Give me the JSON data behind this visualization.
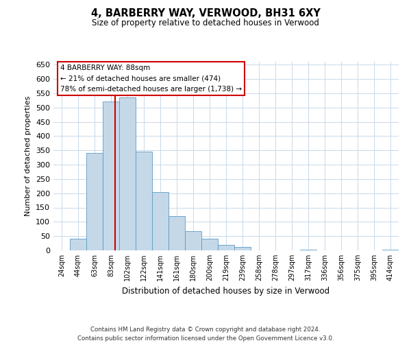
{
  "title": "4, BARBERRY WAY, VERWOOD, BH31 6XY",
  "subtitle": "Size of property relative to detached houses in Verwood",
  "xlabel": "Distribution of detached houses by size in Verwood",
  "ylabel": "Number of detached properties",
  "footer_line1": "Contains HM Land Registry data © Crown copyright and database right 2024.",
  "footer_line2": "Contains public sector information licensed under the Open Government Licence v3.0.",
  "annotation_line1": "4 BARBERRY WAY: 88sqm",
  "annotation_line2": "← 21% of detached houses are smaller (474)",
  "annotation_line3": "78% of semi-detached houses are larger (1,738) →",
  "bin_labels": [
    "24sqm",
    "44sqm",
    "63sqm",
    "83sqm",
    "102sqm",
    "122sqm",
    "141sqm",
    "161sqm",
    "180sqm",
    "200sqm",
    "219sqm",
    "239sqm",
    "258sqm",
    "278sqm",
    "297sqm",
    "317sqm",
    "336sqm",
    "356sqm",
    "375sqm",
    "395sqm",
    "414sqm"
  ],
  "bar_heights": [
    0,
    42,
    340,
    520,
    535,
    345,
    205,
    120,
    67,
    40,
    20,
    12,
    0,
    0,
    0,
    3,
    0,
    0,
    0,
    0,
    3
  ],
  "bar_color": "#c5d8e8",
  "bar_edge_color": "#5a9ac5",
  "vline_color": "#cc0000",
  "ylim": [
    0,
    660
  ],
  "yticks": [
    0,
    50,
    100,
    150,
    200,
    250,
    300,
    350,
    400,
    450,
    500,
    550,
    600,
    650
  ],
  "box_color": "#cc0000",
  "background_color": "#ffffff",
  "grid_color": "#c8d8e8"
}
